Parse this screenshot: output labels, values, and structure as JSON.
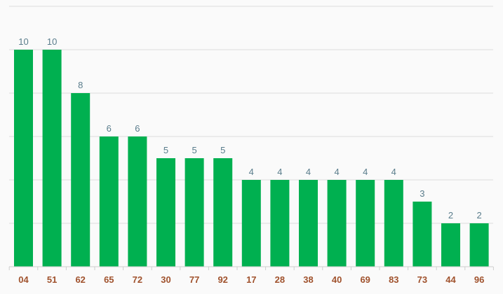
{
  "chart_data": {
    "type": "bar",
    "categories": [
      "04",
      "51",
      "62",
      "65",
      "72",
      "30",
      "77",
      "92",
      "17",
      "28",
      "38",
      "40",
      "69",
      "83",
      "73",
      "44",
      "96"
    ],
    "values": [
      10,
      10,
      8,
      6,
      6,
      5,
      5,
      5,
      4,
      4,
      4,
      4,
      4,
      4,
      3,
      2,
      2
    ],
    "title": "",
    "xlabel": "",
    "ylabel": "",
    "ylim": [
      0,
      12
    ],
    "grid": true,
    "legend": "none",
    "data_labels": true
  },
  "colors": {
    "bar": "#00b050",
    "value_label": "#5a7d8c",
    "category_label": "#a0522d",
    "grid": "#dcdcdc",
    "background": "#fafafa"
  }
}
